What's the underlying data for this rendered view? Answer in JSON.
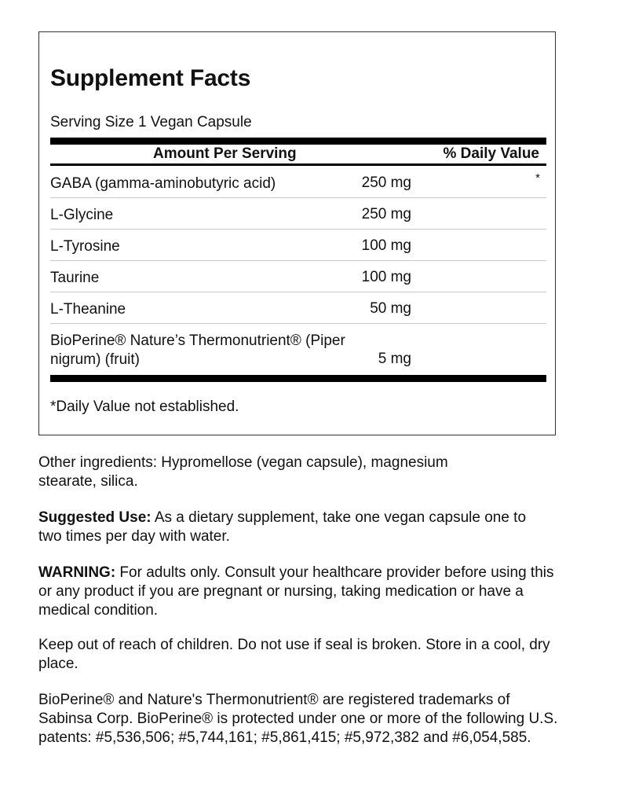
{
  "facts": {
    "title": "Supplement Facts",
    "serving_size": "Serving Size 1 Vegan Capsule",
    "header_amount": "Amount Per Serving",
    "header_dv": "% Daily Value",
    "rows": [
      {
        "name": "GABA (gamma-aminobutyric acid)",
        "amount": "250 mg",
        "dv": "*"
      },
      {
        "name": "L-Glycine",
        "amount": "250 mg",
        "dv": ""
      },
      {
        "name": "L-Tyrosine",
        "amount": "100 mg",
        "dv": ""
      },
      {
        "name": "Taurine",
        "amount": "100 mg",
        "dv": ""
      },
      {
        "name": "L-Theanine",
        "amount": "50 mg",
        "dv": ""
      },
      {
        "name": "BioPerine® Nature’s Thermonutrient® (Piper nigrum) (fruit)",
        "amount": "5 mg",
        "dv": ""
      }
    ],
    "footnote": "*Daily Value not established."
  },
  "info": {
    "other_ingredients": "Other ingredients: Hypromellose (vegan capsule), magnesium stearate, silica.",
    "suggested_label": "Suggested Use:",
    "suggested_text": " As a dietary supplement, take one vegan capsule one to two times per day with water.",
    "warning_label": "WARNING:",
    "warning_text": " For adults only. Consult your healthcare provider before using this or any product if you are pregnant or nursing, taking medication or have a medical condition.",
    "storage": "Keep out of reach of children. Do not use if seal is broken. Store in a cool, dry place.",
    "trademark": "BioPerine® and Nature's Thermonutrient® are registered trademarks of Sabinsa Corp. BioPerine® is protected under one or more of the following U.S. patents: #5,536,506; #5,744,161; #5,861,415; #5,972,382 and #6,054,585."
  }
}
